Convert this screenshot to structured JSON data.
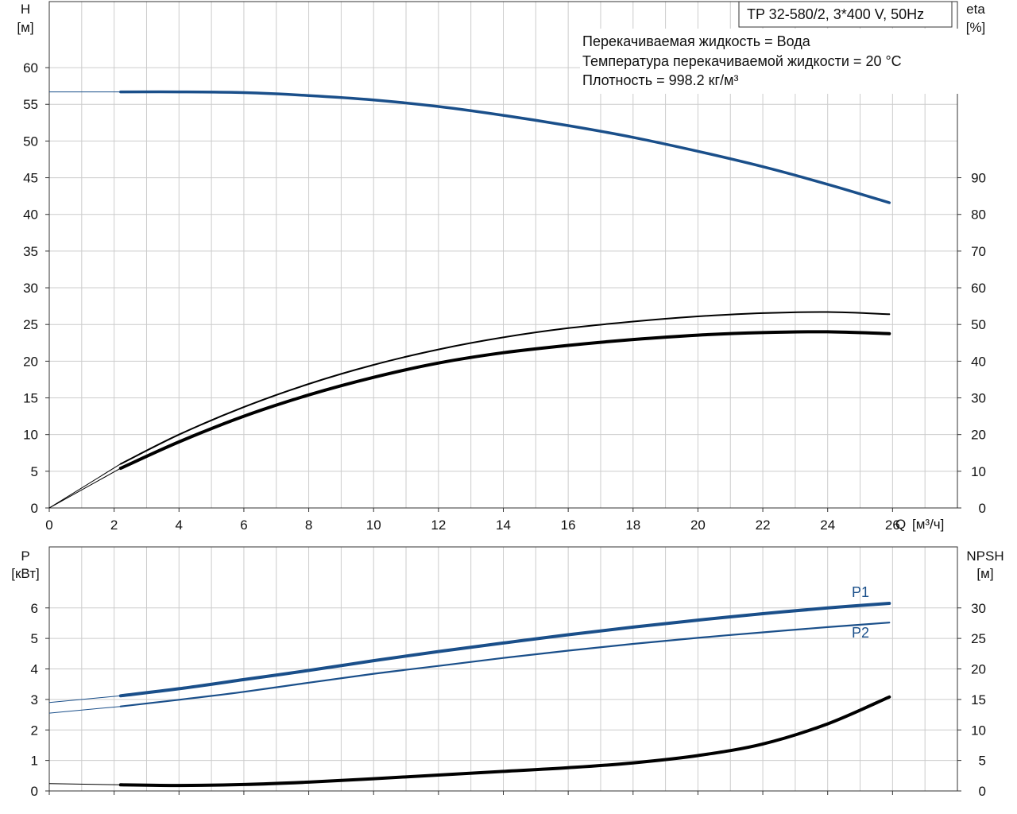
{
  "info_box": {
    "title": "TP 32-580/2, 3*400 V, 50Hz",
    "line1": "Перекачиваемая жидкость = Вода",
    "line2": "Температура перекачиваемой жидкости = 20 °C",
    "line3": "Плотность = 998.2 кг/м³"
  },
  "colors": {
    "blue": "#1a4f8a",
    "black": "#000000",
    "grid": "#cccccc"
  },
  "chart_data": [
    {
      "type": "line",
      "name": "head-efficiency",
      "x_label": "Q [м³/ч]",
      "x_axis_label": "Q",
      "x_axis_unit": "[м³/ч]",
      "x_ticks": [
        "0",
        "2",
        "4",
        "6",
        "8",
        "10",
        "12",
        "14",
        "16",
        "18",
        "20",
        "22",
        "24",
        "26"
      ],
      "xlim": [
        0,
        28
      ],
      "y_left": {
        "label": "H",
        "unit": "[м]",
        "ticks": [
          "0",
          "5",
          "10",
          "15",
          "20",
          "25",
          "30",
          "35",
          "40",
          "45",
          "50",
          "55",
          "60"
        ],
        "ylim": [
          0,
          69
        ]
      },
      "y_right": {
        "label": "eta",
        "unit": "[%]",
        "ticks": [
          "0",
          "10",
          "20",
          "30",
          "40",
          "50",
          "60",
          "70",
          "80",
          "90"
        ],
        "ylim": [
          0,
          138
        ]
      },
      "grid": true,
      "series": [
        {
          "key": "H",
          "axis": "left",
          "color": "#1a4f8a",
          "width": 3.5,
          "x": [
            2.2,
            4,
            6,
            8,
            10,
            12,
            14,
            16,
            18,
            20,
            22,
            24,
            25.9
          ],
          "y": [
            56.7,
            56.7,
            56.6,
            56.2,
            55.6,
            54.7,
            53.5,
            52.1,
            50.5,
            48.6,
            46.5,
            44.1,
            41.6
          ],
          "ext_x": [
            0,
            2.2
          ],
          "ext_y": [
            56.7,
            56.7
          ]
        },
        {
          "key": "eta_upper",
          "axis": "right",
          "color": "#000000",
          "width": 2,
          "x": [
            2.2,
            4,
            6,
            8,
            10,
            12,
            14,
            16,
            18,
            20,
            22,
            24,
            25.9
          ],
          "y": [
            12,
            20,
            27.5,
            33.8,
            39,
            43.2,
            46.5,
            49,
            50.8,
            52.2,
            53.1,
            53.4,
            52.8
          ],
          "ext_x": [
            0,
            2.2
          ],
          "ext_y": [
            0,
            12
          ]
        },
        {
          "key": "eta_lower",
          "axis": "right",
          "color": "#000000",
          "width": 4,
          "x": [
            2.2,
            4,
            6,
            8,
            10,
            12,
            14,
            16,
            18,
            20,
            22,
            24,
            25.9
          ],
          "y": [
            10.8,
            18,
            25,
            30.8,
            35.6,
            39.5,
            42.3,
            44.3,
            45.9,
            47.1,
            47.8,
            48,
            47.5
          ],
          "ext_x": [
            0,
            2.2
          ],
          "ext_y": [
            0,
            10.8
          ]
        }
      ]
    },
    {
      "type": "line",
      "name": "power-npsh",
      "x_ticks": [
        "0",
        "2",
        "4",
        "6",
        "8",
        "10",
        "12",
        "14",
        "16",
        "18",
        "20",
        "22",
        "24",
        "26"
      ],
      "xlim": [
        0,
        28
      ],
      "y_left": {
        "label": "P",
        "unit": "[кВт]",
        "ticks": [
          "0",
          "1",
          "2",
          "3",
          "4",
          "5",
          "6"
        ],
        "ylim": [
          0,
          8
        ]
      },
      "y_right": {
        "label": "NPSH",
        "unit": "[м]",
        "ticks": [
          "0",
          "5",
          "10",
          "15",
          "20",
          "25",
          "30"
        ],
        "ylim": [
          0,
          40
        ]
      },
      "grid": true,
      "series": [
        {
          "key": "P1",
          "label": "P1",
          "axis": "left",
          "color": "#1a4f8a",
          "width": 4,
          "x": [
            2.2,
            4,
            6,
            8,
            10,
            12,
            14,
            16,
            18,
            20,
            22,
            24,
            25.9
          ],
          "y": [
            3.12,
            3.35,
            3.65,
            3.95,
            4.27,
            4.57,
            4.85,
            5.12,
            5.37,
            5.6,
            5.81,
            6.0,
            6.15
          ],
          "ext_x": [
            0,
            2.2
          ],
          "ext_y": [
            2.9,
            3.12
          ]
        },
        {
          "key": "P2",
          "label": "P2",
          "axis": "left",
          "color": "#1a4f8a",
          "width": 2.2,
          "x": [
            2.2,
            4,
            6,
            8,
            10,
            12,
            14,
            16,
            18,
            20,
            22,
            24,
            25.9
          ],
          "y": [
            2.77,
            2.99,
            3.25,
            3.55,
            3.84,
            4.1,
            4.36,
            4.6,
            4.82,
            5.02,
            5.2,
            5.37,
            5.52
          ],
          "ext_x": [
            0,
            2.2
          ],
          "ext_y": [
            2.55,
            2.77
          ]
        },
        {
          "key": "NPSH",
          "axis": "right",
          "color": "#000000",
          "width": 4,
          "x": [
            2.2,
            4,
            6,
            8,
            10,
            12,
            14,
            16,
            18,
            20,
            22,
            24,
            25.9
          ],
          "y": [
            1.0,
            0.9,
            1.05,
            1.45,
            2.0,
            2.6,
            3.2,
            3.8,
            4.6,
            5.8,
            7.7,
            11.0,
            15.4
          ],
          "ext_x": [
            0,
            2.2
          ],
          "ext_y": [
            1.2,
            1.0
          ]
        }
      ]
    }
  ]
}
